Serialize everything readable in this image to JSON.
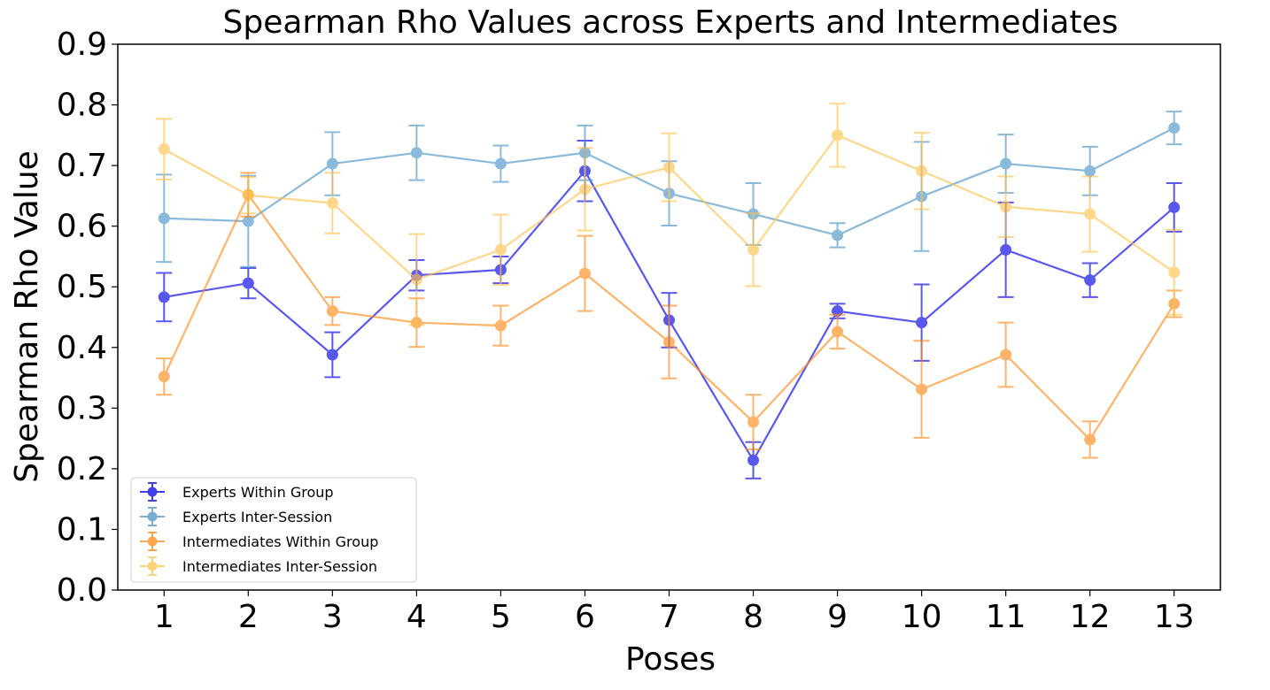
{
  "chart_data": {
    "type": "line",
    "title": "Spearman Rho Values across Experts and Intermediates",
    "xlabel": "Poses",
    "ylabel": "Spearman Rho Value",
    "x": [
      1,
      2,
      3,
      4,
      5,
      6,
      7,
      8,
      9,
      10,
      11,
      12,
      13
    ],
    "xlim": [
      0.45,
      13.55
    ],
    "ylim": [
      0.0,
      0.9
    ],
    "yticks": [
      "0.0",
      "0.1",
      "0.2",
      "0.3",
      "0.4",
      "0.5",
      "0.6",
      "0.7",
      "0.8",
      "0.9"
    ],
    "xticks": [
      "1",
      "2",
      "3",
      "4",
      "5",
      "6",
      "7",
      "8",
      "9",
      "10",
      "11",
      "12",
      "13"
    ],
    "grid": false,
    "legend_position": "lower-left",
    "error_bars": true,
    "series": [
      {
        "name": "Experts Within Group",
        "color": "#0000e6",
        "values": [
          0.483,
          0.506,
          0.388,
          0.519,
          0.528,
          0.691,
          0.445,
          0.214,
          0.46,
          0.441,
          0.561,
          0.511,
          0.631
        ],
        "error": [
          0.04,
          0.025,
          0.037,
          0.025,
          0.022,
          0.05,
          0.045,
          0.03,
          0.012,
          0.063,
          0.078,
          0.028,
          0.04
        ]
      },
      {
        "name": "Experts Inter-Session",
        "color": "#4c96c8",
        "values": [
          0.613,
          0.608,
          0.703,
          0.721,
          0.703,
          0.721,
          0.654,
          0.62,
          0.585,
          0.649,
          0.703,
          0.691,
          0.762
        ],
        "error": [
          0.072,
          0.075,
          0.052,
          0.045,
          0.03,
          0.045,
          0.053,
          0.051,
          0.02,
          0.09,
          0.048,
          0.04,
          0.027
        ]
      },
      {
        "name": "Intermediates Within Group",
        "color": "#ff8c1a",
        "values": [
          0.352,
          0.652,
          0.46,
          0.441,
          0.436,
          0.522,
          0.409,
          0.277,
          0.426,
          0.331,
          0.388,
          0.248,
          0.472
        ],
        "error": [
          0.03,
          0.036,
          0.023,
          0.04,
          0.033,
          0.062,
          0.06,
          0.045,
          0.028,
          0.08,
          0.053,
          0.03,
          0.022
        ]
      },
      {
        "name": "Intermediates Inter-Session",
        "color": "#ffc34d",
        "values": [
          0.727,
          0.651,
          0.638,
          0.512,
          0.561,
          0.661,
          0.697,
          0.561,
          0.75,
          0.691,
          0.632,
          0.62,
          0.524
        ],
        "error": [
          0.05,
          0.03,
          0.05,
          0.075,
          0.058,
          0.068,
          0.056,
          0.06,
          0.052,
          0.063,
          0.05,
          0.062,
          0.07
        ]
      }
    ]
  }
}
